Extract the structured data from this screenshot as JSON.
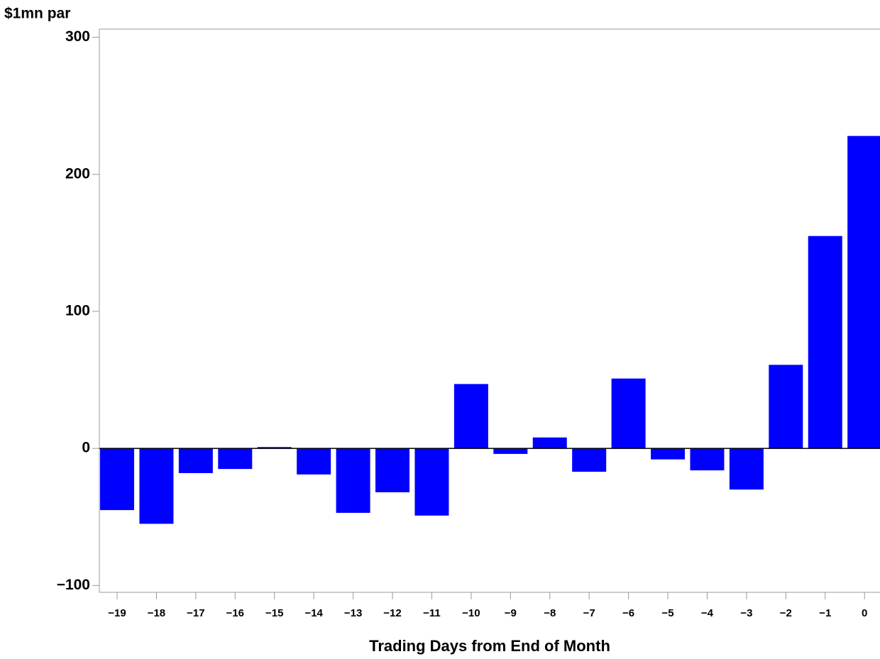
{
  "chart_data": {
    "type": "bar",
    "y_label": "$1mn par",
    "x_label": "Trading Days from End of Month",
    "categories": [
      "−19",
      "−18",
      "−17",
      "−16",
      "−15",
      "−14",
      "−13",
      "−12",
      "−11",
      "−10",
      "−9",
      "−8",
      "−7",
      "−6",
      "−5",
      "−4",
      "−3",
      "−2",
      "−1",
      "0"
    ],
    "values": [
      -45,
      -55,
      -18,
      -15,
      1,
      -19,
      -47,
      -32,
      -49,
      47,
      -4,
      8,
      -17,
      51,
      -8,
      -16,
      -30,
      61,
      155,
      228
    ],
    "color": "#0000ff",
    "ylim": [
      -105,
      306
    ],
    "yticks": [
      {
        "value": -100,
        "label": "−100"
      },
      0,
      100,
      200,
      300
    ]
  }
}
